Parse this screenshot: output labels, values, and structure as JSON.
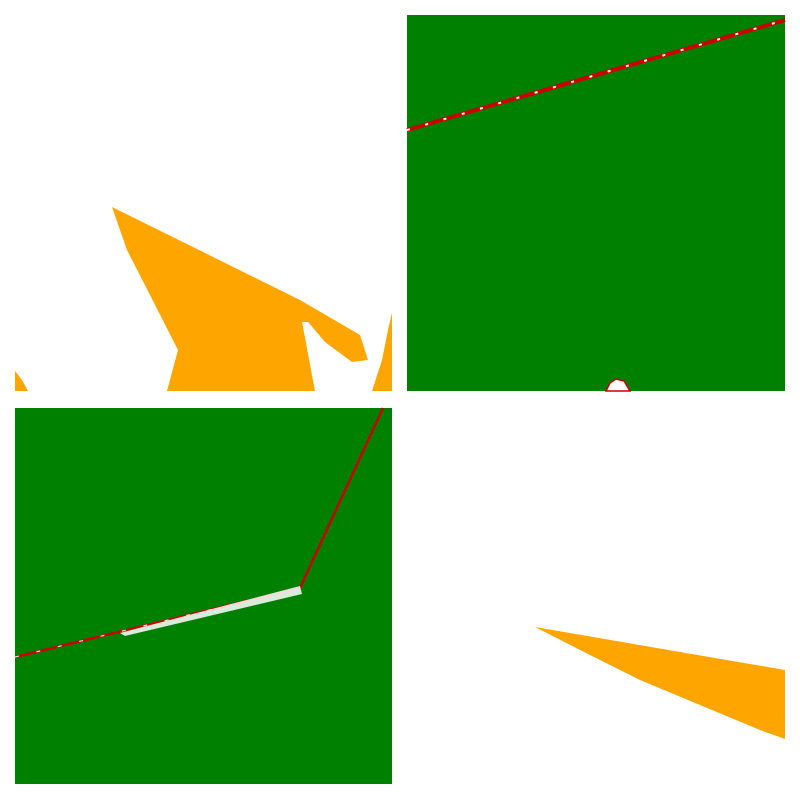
{
  "layout": "2x2 tile grid",
  "colors": {
    "background": "#ffffff",
    "vegetation": "#008000",
    "terrain": "#ffa500",
    "boundary": "#cc0000",
    "boundary_marker": "#ffffff",
    "highlight": "#cfe8ef"
  },
  "tiles": [
    {
      "id": "top-left",
      "fill": "#ffffff",
      "features": [
        "terrain-shape-main",
        "terrain-shape-sliver",
        "terrain-shape-left-notch",
        "terrain-shape-right-spike"
      ]
    },
    {
      "id": "top-right",
      "fill": "#008000",
      "features": [
        "boundary-line",
        "white-notch"
      ]
    },
    {
      "id": "bottom-left",
      "fill": "#008000",
      "features": [
        "bent-boundary-line"
      ]
    },
    {
      "id": "bottom-right",
      "fill": "#ffffff",
      "features": [
        "terrain-wedge"
      ]
    }
  ]
}
